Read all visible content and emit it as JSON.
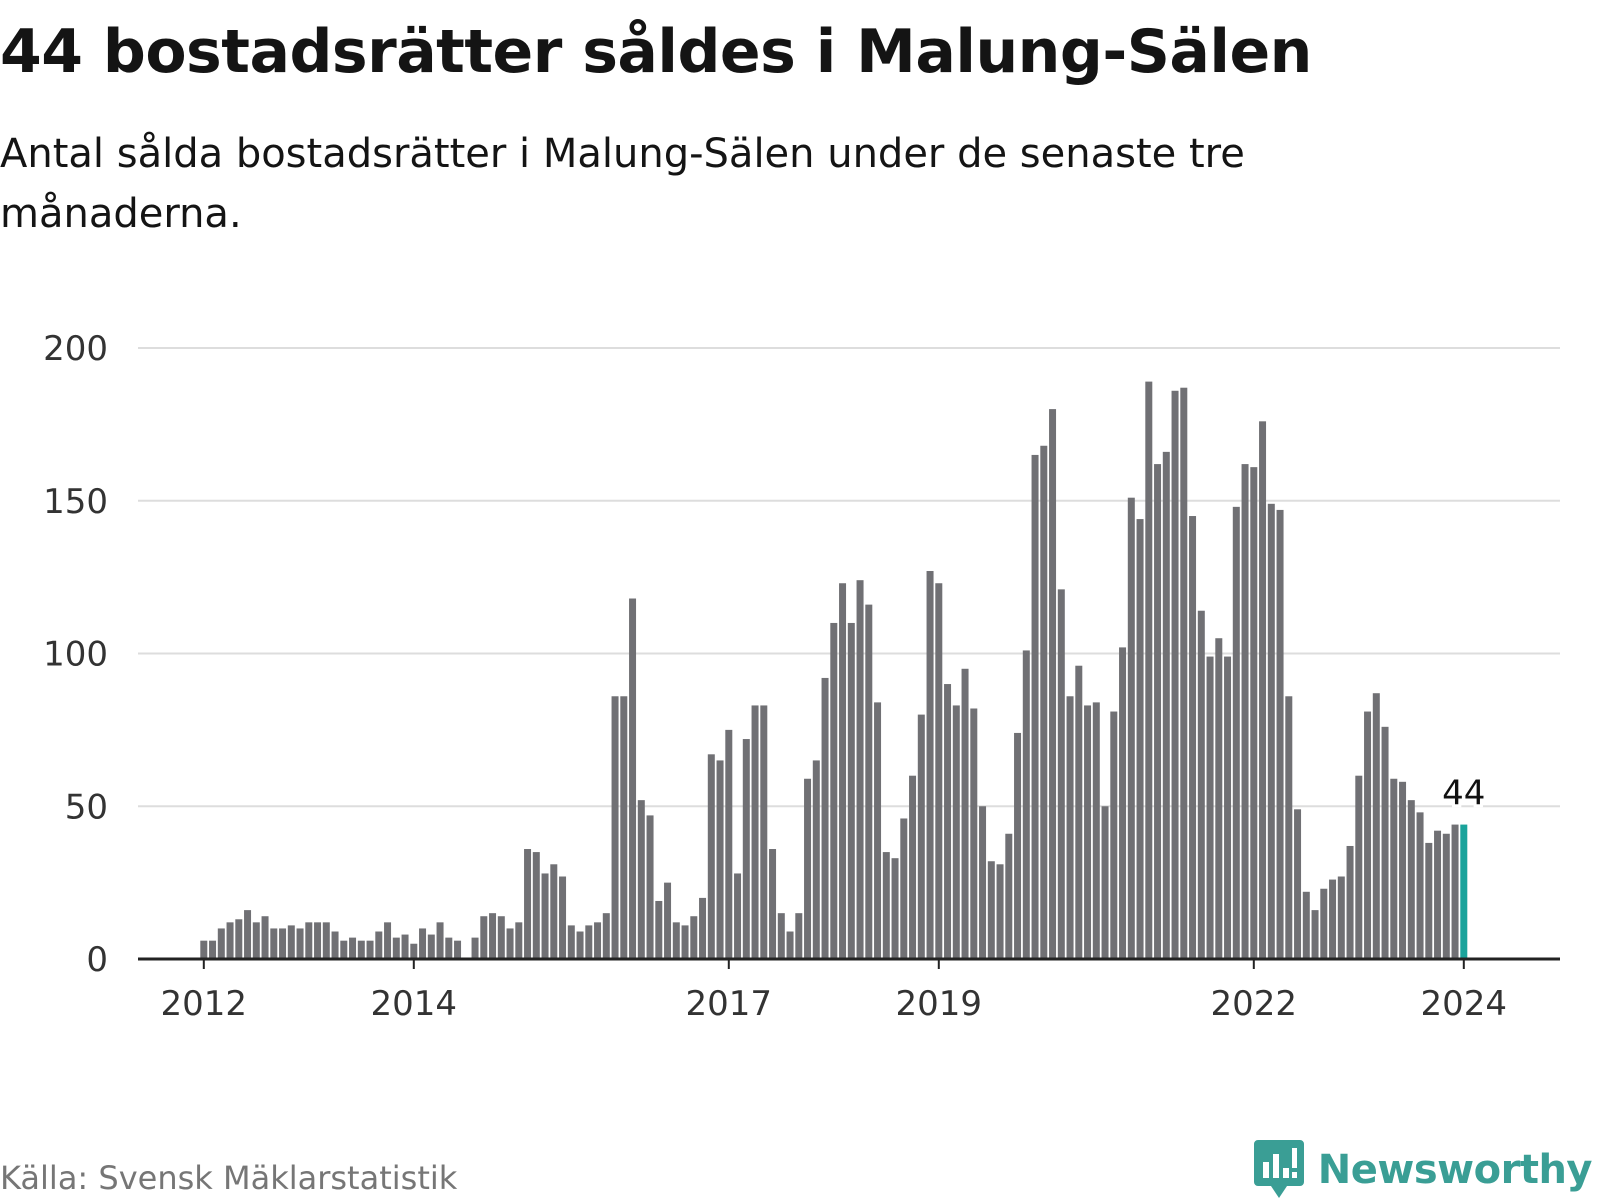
{
  "title": "44 bostadsrätter såldes i Malung-Sälen",
  "subtitle": "Antal sålda bostadsrätter i Malung-Sälen under de senaste tre månaderna.",
  "source": "Källa: Svensk Mäklarstatistik",
  "brand": {
    "name": "Newsworthy",
    "logo_icon": "newsworthy-logo-icon",
    "color": "#3a9e95"
  },
  "colors": {
    "bar": "#707074",
    "highlight": "#1aa39b",
    "grid": "#dddddd",
    "axis": "#222222",
    "tick_text": "#333333"
  },
  "chart_data": {
    "type": "bar",
    "title": "44 bostadsrätter såldes i Malung-Sälen",
    "xlabel": "",
    "ylabel": "",
    "ylim": [
      0,
      200
    ],
    "yticks": [
      0,
      50,
      100,
      150,
      200
    ],
    "grid": true,
    "start": "2011-05",
    "xticks": [
      {
        "label": "2012",
        "index": 8
      },
      {
        "label": "2014",
        "index": 32
      },
      {
        "label": "2017",
        "index": 68
      },
      {
        "label": "2019",
        "index": 92
      },
      {
        "label": "2022",
        "index": 128
      },
      {
        "label": "2024",
        "index": 152
      }
    ],
    "highlight": {
      "index": 152,
      "value": 44,
      "label": "44"
    },
    "values": [
      null,
      null,
      null,
      null,
      null,
      null,
      null,
      null,
      6,
      6,
      10,
      12,
      13,
      16,
      12,
      14,
      10,
      10,
      11,
      10,
      12,
      12,
      12,
      9,
      6,
      7,
      6,
      6,
      9,
      12,
      7,
      8,
      5,
      10,
      8,
      12,
      7,
      6,
      0,
      7,
      14,
      15,
      14,
      10,
      12,
      36,
      35,
      28,
      31,
      27,
      11,
      9,
      11,
      12,
      15,
      86,
      86,
      118,
      52,
      47,
      19,
      25,
      12,
      11,
      14,
      20,
      67,
      65,
      75,
      28,
      72,
      83,
      83,
      36,
      15,
      9,
      15,
      59,
      65,
      92,
      110,
      123,
      110,
      124,
      116,
      84,
      35,
      33,
      46,
      60,
      80,
      127,
      123,
      90,
      83,
      95,
      82,
      50,
      32,
      31,
      41,
      74,
      101,
      165,
      168,
      180,
      121,
      86,
      96,
      83,
      84,
      50,
      81,
      102,
      151,
      144,
      189,
      162,
      166,
      186,
      187,
      145,
      114,
      99,
      105,
      99,
      148,
      162,
      161,
      176,
      149,
      147,
      86,
      49,
      22,
      16,
      23,
      26,
      27,
      37,
      60,
      81,
      87,
      76,
      59,
      58,
      52,
      48,
      38,
      42,
      41,
      44,
      44
    ]
  }
}
